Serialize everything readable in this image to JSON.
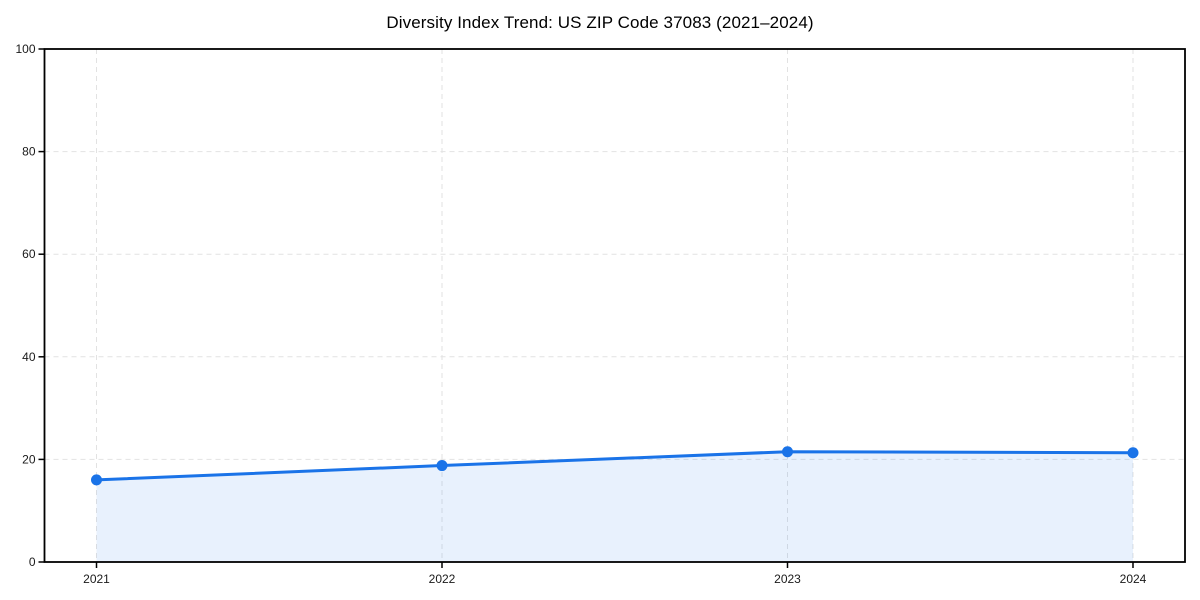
{
  "chart_data": {
    "type": "area",
    "title": "Diversity Index Trend: US ZIP Code 37083 (2021–2024)",
    "categories": [
      "2021",
      "2022",
      "2023",
      "2024"
    ],
    "series": [
      {
        "name": "Diversity Index",
        "values": [
          16,
          18.8,
          21.5,
          21.3
        ]
      }
    ],
    "xlabel": "",
    "ylabel": "",
    "ylim": [
      0,
      100
    ],
    "yticks": [
      0,
      20,
      40,
      60,
      80,
      100
    ],
    "grid": "dashed",
    "legend": "none",
    "marker": "circle",
    "colors": {
      "line": "#1a73e8",
      "marker": "#1a73e8",
      "area_fill": "rgba(26,115,232,0.10)",
      "grid": "#e2e2e2",
      "spine": "#000000",
      "tick_label": "#1a1a1a",
      "title": "#000000"
    }
  }
}
